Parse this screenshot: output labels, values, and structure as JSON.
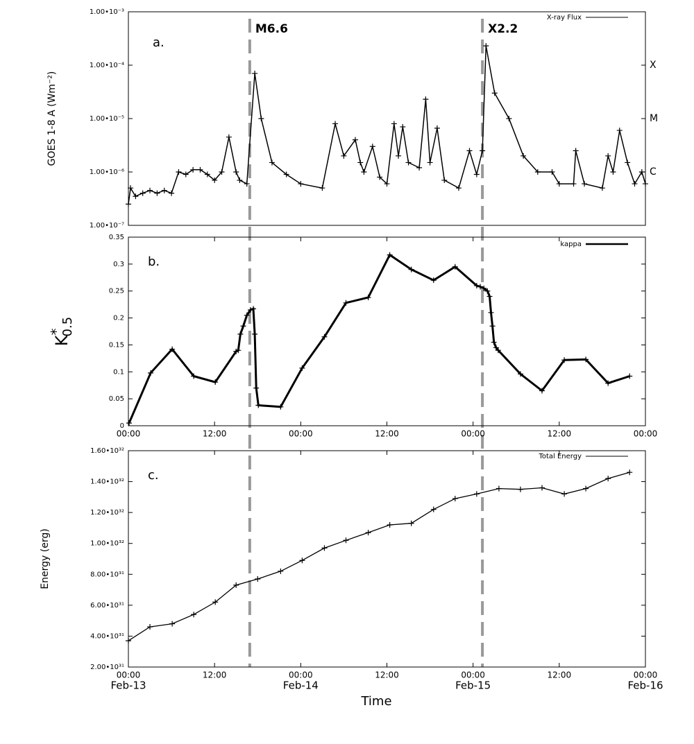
{
  "chart_data": [
    {
      "type": "line",
      "panel_label": "a.",
      "ylabel": "GOES 1-8 A (Wm⁻²)",
      "log_y": true,
      "grid": false,
      "xlim": [
        0,
        72
      ],
      "ylim": [
        1e-07,
        0.001
      ],
      "yticks": [
        {
          "value": 1e-07,
          "label": "1.00•10⁻⁷"
        },
        {
          "value": 1e-06,
          "label": "1.00•10⁻⁶"
        },
        {
          "value": 1e-05,
          "label": "1.00•10⁻⁵"
        },
        {
          "value": 0.0001,
          "label": "1.00•10⁻⁴"
        },
        {
          "value": 0.001,
          "label": "1.00•10⁻³"
        }
      ],
      "flare_classes": [
        {
          "value": 0.0001,
          "label": "X"
        },
        {
          "value": 1e-05,
          "label": "M"
        },
        {
          "value": 1e-06,
          "label": "C"
        }
      ],
      "events": [
        {
          "x": 16.9,
          "label": "M6.6"
        },
        {
          "x": 49.3,
          "label": "X2.2"
        }
      ],
      "series": [
        {
          "name": "X-ray Flux",
          "color": "#000000",
          "x": [
            0,
            0.3,
            1,
            2,
            3,
            4,
            5,
            6,
            7,
            8,
            9,
            10,
            11,
            12,
            13,
            14,
            15,
            15.5,
            16.5,
            17.6,
            18.5,
            20,
            22,
            24,
            27,
            28.8,
            30,
            31.6,
            32.3,
            32.8,
            34,
            35,
            36,
            37,
            37.6,
            38.2,
            39,
            40.5,
            41.4,
            42,
            43,
            44,
            46,
            47.5,
            48.5,
            49.3,
            49.8,
            51,
            53,
            55,
            57,
            59,
            60,
            62,
            62.3,
            63.5,
            66,
            66.8,
            67.5,
            68.4,
            69.5,
            70.5,
            71.5,
            72
          ],
          "values": [
            2.5e-07,
            5e-07,
            3.5e-07,
            4e-07,
            4.5e-07,
            4e-07,
            4.5e-07,
            4e-07,
            1e-06,
            9e-07,
            1.1e-06,
            1.1e-06,
            9e-07,
            7e-07,
            1e-06,
            4.5e-06,
            1e-06,
            7e-07,
            6e-07,
            7e-05,
            1e-05,
            1.5e-06,
            9e-07,
            6e-07,
            5e-07,
            8e-06,
            2e-06,
            4e-06,
            1.5e-06,
            1e-06,
            3e-06,
            8e-07,
            6e-07,
            8e-06,
            2e-06,
            7e-06,
            1.5e-06,
            1.2e-06,
            2.3e-05,
            1.5e-06,
            6.6e-06,
            7e-07,
            5e-07,
            2.5e-06,
            9e-07,
            2.5e-06,
            0.00023,
            3e-05,
            1e-05,
            2e-06,
            1e-06,
            1e-06,
            6e-07,
            6e-07,
            2.5e-06,
            6e-07,
            5e-07,
            2e-06,
            1e-06,
            6e-06,
            1.5e-06,
            6e-07,
            1e-06,
            6e-07
          ]
        }
      ]
    },
    {
      "type": "line",
      "panel_label": "b.",
      "ylabel": "K",
      "ylabel_sup": "*",
      "ylabel_sub": "0.5",
      "grid": false,
      "xlim": [
        0,
        72
      ],
      "ylim": [
        0,
        0.35
      ],
      "yticks": [
        0,
        0.05,
        0.1,
        0.15,
        0.2,
        0.25,
        0.3,
        0.35
      ],
      "xticks": [
        {
          "value": 0,
          "label": "00:00"
        },
        {
          "value": 12,
          "label": "12:00"
        },
        {
          "value": 24,
          "label": "00:00"
        },
        {
          "value": 36,
          "label": "12:00"
        },
        {
          "value": 48,
          "label": "00:00"
        },
        {
          "value": 60,
          "label": "12:00"
        },
        {
          "value": 72,
          "label": "00:00"
        }
      ],
      "series": [
        {
          "name": "kappa",
          "color": "#000000",
          "x": [
            0.1,
            3.1,
            6.1,
            9.1,
            12.1,
            15,
            15.3,
            15.6,
            16,
            16.5,
            17,
            17.4,
            17.6,
            17.8,
            18.1,
            21.2,
            24.2,
            27.3,
            30.3,
            33.4,
            36.4,
            39.4,
            42.5,
            45.5,
            48.5,
            49,
            49.5,
            50,
            50.3,
            50.5,
            50.7,
            50.9,
            51.2,
            51.5,
            54.6,
            57.6,
            60.7,
            63.7,
            66.8,
            69.8
          ],
          "values": [
            0.005,
            0.098,
            0.142,
            0.092,
            0.081,
            0.138,
            0.14,
            0.17,
            0.185,
            0.205,
            0.215,
            0.217,
            0.17,
            0.07,
            0.038,
            0.035,
            0.107,
            0.165,
            0.228,
            0.238,
            0.317,
            0.29,
            0.27,
            0.295,
            0.26,
            0.258,
            0.255,
            0.25,
            0.24,
            0.21,
            0.185,
            0.155,
            0.145,
            0.14,
            0.096,
            0.065,
            0.122,
            0.123,
            0.079,
            0.092
          ]
        }
      ]
    },
    {
      "type": "line",
      "panel_label": "c.",
      "ylabel": "Energy (erg)",
      "xlabel": "Time",
      "grid": false,
      "xlim": [
        0,
        72
      ],
      "ylim": [
        2e+31,
        1.6e+32
      ],
      "yticks": [
        {
          "value": 2e+31,
          "label": "2.00•10³¹"
        },
        {
          "value": 4e+31,
          "label": "4.00•10³¹"
        },
        {
          "value": 6e+31,
          "label": "6.00•10³¹"
        },
        {
          "value": 8e+31,
          "label": "8.00•10³¹"
        },
        {
          "value": 1e+32,
          "label": "1.00•10³²"
        },
        {
          "value": 1.2e+32,
          "label": "1.20•10³²"
        },
        {
          "value": 1.4e+32,
          "label": "1.40•10³²"
        },
        {
          "value": 1.6e+32,
          "label": "1.60•10³²"
        }
      ],
      "xticks": [
        {
          "value": 0,
          "label": "00:00"
        },
        {
          "value": 12,
          "label": "12:00"
        },
        {
          "value": 24,
          "label": "00:00"
        },
        {
          "value": 36,
          "label": "12:00"
        },
        {
          "value": 48,
          "label": "00:00"
        },
        {
          "value": 60,
          "label": "12:00"
        },
        {
          "value": 72,
          "label": "00:00"
        }
      ],
      "date_labels": [
        {
          "value": 0,
          "label": "Feb-13"
        },
        {
          "value": 24,
          "label": "Feb-14"
        },
        {
          "value": 48,
          "label": "Feb-15"
        },
        {
          "value": 72,
          "label": "Feb-16"
        }
      ],
      "series": [
        {
          "name": "Total Energy",
          "color": "#000000",
          "x": [
            0,
            3,
            6.1,
            9.1,
            12.1,
            15,
            18,
            21.2,
            24.2,
            27.3,
            30.3,
            33.4,
            36.4,
            39.4,
            42.5,
            45.5,
            48.5,
            51.6,
            54.6,
            57.6,
            60.7,
            63.7,
            66.8,
            69.8
          ],
          "values": [
            3.7e+31,
            4.6e+31,
            4.8e+31,
            5.4e+31,
            6.2e+31,
            7.3e+31,
            7.7e+31,
            8.2e+31,
            8.9e+31,
            9.7e+31,
            1.02e+32,
            1.07e+32,
            1.12e+32,
            1.13e+32,
            1.22e+32,
            1.29e+32,
            1.32e+32,
            1.355e+32,
            1.35e+32,
            1.36e+32,
            1.32e+32,
            1.355e+32,
            1.42e+32,
            1.46e+32
          ]
        }
      ]
    }
  ]
}
